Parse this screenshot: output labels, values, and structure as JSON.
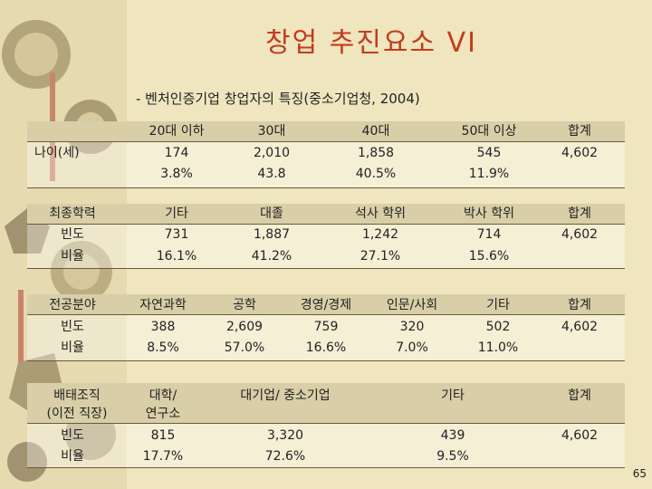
{
  "title": "창업 추진요소 VI",
  "subtitle": "- 벤처인증기업 창업자의 특징(중소기업청, 2004)",
  "page_number": "65",
  "colors": {
    "title": "#c73a1a",
    "background": "#efe6bf"
  },
  "age": {
    "label": "나이(세)",
    "headers": [
      "20대 이하",
      "30대",
      "40대",
      "50대 이상",
      "합계"
    ],
    "counts": [
      "174",
      "2,010",
      "1,858",
      "545",
      "4,602"
    ],
    "ratios": [
      "3.8%",
      "43.8",
      "40.5%",
      "11.9%"
    ]
  },
  "education": {
    "label": "최종학력",
    "row_freq": "빈도",
    "row_ratio": "비율",
    "headers": [
      "기타",
      "대졸",
      "석사 학위",
      "박사 학위",
      "합계"
    ],
    "counts": [
      "731",
      "1,887",
      "1,242",
      "714",
      "4,602"
    ],
    "ratios": [
      "16.1%",
      "41.2%",
      "27.1%",
      "15.6%"
    ]
  },
  "major": {
    "label": "전공분야",
    "row_freq": "빈도",
    "row_ratio": "비율",
    "headers": [
      "자연과학",
      "공학",
      "경영/경제",
      "인문/사회",
      "기타",
      "합계"
    ],
    "counts": [
      "388",
      "2,609",
      "759",
      "320",
      "502",
      "4,602"
    ],
    "ratios": [
      "8.5%",
      "57.0%",
      "16.6%",
      "7.0%",
      "11.0%"
    ]
  },
  "background": {
    "label_line1": "배태조직",
    "label_line2": "(이전 직장)",
    "row_freq": "빈도",
    "row_ratio": "비율",
    "header_1_line1": "대학/",
    "header_1_line2": "연구소",
    "headers": [
      "대기업/ 중소기업",
      "기타",
      "합계"
    ],
    "counts": [
      "815",
      "3,320",
      "439",
      "4,602"
    ],
    "ratios": [
      "17.7%",
      "72.6%",
      "9.5%"
    ]
  }
}
